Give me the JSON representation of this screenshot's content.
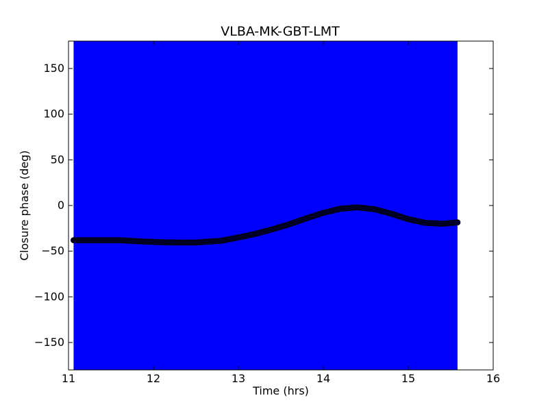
{
  "chart_data": {
    "type": "scatter",
    "title": "VLBA-MK-GBT-LMT",
    "xlabel": "Time (hrs)",
    "ylabel": "Closure phase (deg)",
    "xlim": [
      11,
      16
    ],
    "ylim": [
      -180,
      180
    ],
    "xticks": [
      11,
      12,
      13,
      14,
      15,
      16
    ],
    "xtick_labels": [
      "11",
      "12",
      "13",
      "14",
      "15",
      "16"
    ],
    "yticks": [
      150,
      100,
      50,
      0,
      -50,
      -100,
      -150
    ],
    "ytick_labels": [
      "150",
      "100",
      "50",
      "0",
      "−50",
      "−100",
      "−150"
    ],
    "error_band": {
      "x_range": [
        11.06,
        15.58
      ],
      "y_range": [
        -180,
        180
      ],
      "color": "#0000ff"
    },
    "series": [
      {
        "marker_color": "#000033",
        "x": [
          11.06,
          11.3,
          11.6,
          11.9,
          12.2,
          12.5,
          12.8,
          13.0,
          13.2,
          13.4,
          13.6,
          13.8,
          14.0,
          14.2,
          14.4,
          14.6,
          14.8,
          15.0,
          15.2,
          15.4,
          15.58
        ],
        "y": [
          -38,
          -38,
          -38,
          -39.5,
          -40.5,
          -40.5,
          -38.5,
          -35,
          -31,
          -26,
          -20.5,
          -14,
          -8,
          -3.5,
          -2,
          -4,
          -9,
          -15,
          -19,
          -20,
          -18.5
        ]
      }
    ],
    "grid": false,
    "legend": "none"
  }
}
